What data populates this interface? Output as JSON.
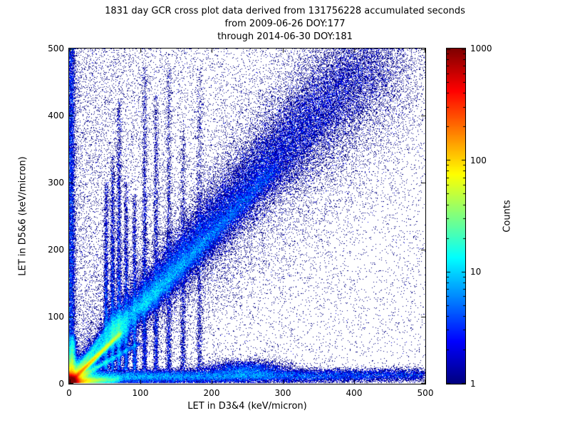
{
  "chart_data": {
    "type": "heatmap",
    "title": "1831 day GCR cross plot data derived from 131756228 accumulated seconds",
    "subtitle_from": "from 2009-06-26 DOY:177",
    "subtitle_through": "through 2014-06-30 DOY:181",
    "xlabel": "LET in D3&4 (keV/micron)",
    "ylabel": "LET in D5&6 (keV/micron)",
    "xlim": [
      0,
      500
    ],
    "ylim": [
      0,
      500
    ],
    "xticks": [
      0,
      100,
      200,
      300,
      400,
      500
    ],
    "yticks": [
      0,
      100,
      200,
      300,
      400,
      500
    ],
    "grid": false,
    "colormap": "jet",
    "background": "#ffffff",
    "point_color_min": "#000080",
    "colorbar": {
      "label": "Counts",
      "scale": "log",
      "min": 1,
      "max": 1000,
      "ticks": [
        1,
        10,
        100,
        1000
      ]
    },
    "features": [
      {
        "name": "origin-hotspot",
        "type": "gaussian",
        "x": 3,
        "y": 3,
        "sx": 5,
        "sy": 5,
        "points": 130000
      },
      {
        "name": "origin-halo",
        "type": "gaussian",
        "x": 6,
        "y": 6,
        "sx": 14,
        "sy": 14,
        "points": 30000
      },
      {
        "name": "x-axis-ray",
        "type": "line",
        "x1": 0,
        "y1": 3,
        "x2": 70,
        "y2": 5,
        "sigma": 2.5,
        "decay": 2.5,
        "points": 22000
      },
      {
        "name": "y-axis-ray",
        "type": "line",
        "x1": 3,
        "y1": 0,
        "x2": 5,
        "y2": 70,
        "sigma": 2.5,
        "decay": 2.5,
        "points": 16000
      },
      {
        "name": "diagonal-bright-streak",
        "type": "line",
        "x1": 0,
        "y1": 0,
        "x2": 73,
        "y2": 75,
        "sigma": 1.7,
        "decay": 2.0,
        "points": 42000
      },
      {
        "name": "lower-fan-streak",
        "type": "line",
        "x1": 0,
        "y1": 0,
        "x2": 100,
        "y2": 60,
        "sigma": 2.2,
        "decay": 2.6,
        "points": 9000
      },
      {
        "name": "upper-fan-streak",
        "type": "line",
        "x1": 0,
        "y1": 0,
        "x2": 58,
        "y2": 88,
        "sigma": 2.2,
        "decay": 2.6,
        "points": 7000
      },
      {
        "name": "streak-tip-cluster",
        "type": "gaussian",
        "x": 68,
        "y": 80,
        "sx": 8,
        "sy": 16,
        "points": 7000
      },
      {
        "name": "main-diagonal-band",
        "type": "line",
        "x1": 15,
        "y1": 18,
        "x2": 430,
        "y2": 500,
        "sigma": 13,
        "sigma_grow": 2.2,
        "decay": 1.3,
        "points": 70000
      },
      {
        "name": "diagonal-band-core",
        "type": "line",
        "x1": 100,
        "y1": 110,
        "x2": 290,
        "y2": 320,
        "sigma": 6,
        "decay": 1.0,
        "points": 12000
      },
      {
        "name": "diagonal-band-halo",
        "type": "line",
        "x1": 10,
        "y1": 15,
        "x2": 460,
        "y2": 500,
        "sigma": 38,
        "sigma_grow": 2.0,
        "decay": 0.7,
        "points": 15000
      },
      {
        "name": "bottom-band",
        "type": "line",
        "x1": 0,
        "y1": 9,
        "x2": 500,
        "y2": 12,
        "sigma": 5,
        "decay": 1.4,
        "points": 34000
      },
      {
        "name": "bottom-band-bump",
        "type": "gaussian",
        "x": 248,
        "y": 20,
        "sx": 30,
        "sy": 7,
        "points": 5000
      },
      {
        "name": "left-edge-column",
        "type": "vline",
        "x": 3,
        "y0": 0,
        "ymax": 500,
        "sigma": 3,
        "decay": 0.5,
        "points": 10000
      },
      {
        "name": "vertical-striation-1",
        "type": "vline",
        "x": 52,
        "y0": 20,
        "ymax": 300,
        "sigma": 1.6,
        "decay": 2.0,
        "points": 3000
      },
      {
        "name": "vertical-striation-2",
        "type": "vline",
        "x": 61,
        "y0": 20,
        "ymax": 340,
        "sigma": 1.6,
        "decay": 2.0,
        "points": 3200
      },
      {
        "name": "vertical-striation-3",
        "type": "vline",
        "x": 70,
        "y0": 20,
        "ymax": 420,
        "sigma": 1.7,
        "decay": 2.2,
        "points": 3600
      },
      {
        "name": "vertical-striation-4",
        "type": "vline",
        "x": 80,
        "y0": 20,
        "ymax": 300,
        "sigma": 1.6,
        "decay": 2.0,
        "points": 2600
      },
      {
        "name": "vertical-striation-5",
        "type": "vline",
        "x": 92,
        "y0": 20,
        "ymax": 280,
        "sigma": 1.7,
        "decay": 1.8,
        "points": 2400
      },
      {
        "name": "vertical-striation-6",
        "type": "vline",
        "x": 106,
        "y0": 20,
        "ymax": 470,
        "sigma": 1.8,
        "decay": 1.8,
        "points": 2600
      },
      {
        "name": "vertical-striation-7",
        "type": "vline",
        "x": 122,
        "y0": 20,
        "ymax": 430,
        "sigma": 1.8,
        "decay": 1.6,
        "points": 2200
      },
      {
        "name": "vertical-striation-8",
        "type": "vline",
        "x": 140,
        "y0": 20,
        "ymax": 470,
        "sigma": 2.0,
        "decay": 1.5,
        "points": 2000
      },
      {
        "name": "vertical-striation-9",
        "type": "vline",
        "x": 160,
        "y0": 20,
        "ymax": 380,
        "sigma": 2.0,
        "decay": 1.5,
        "points": 1500
      },
      {
        "name": "vertical-striation-10",
        "type": "vline",
        "x": 183,
        "y0": 20,
        "ymax": 470,
        "sigma": 2.2,
        "decay": 1.4,
        "points": 1400
      },
      {
        "name": "sparse-background-scatter",
        "type": "scatter",
        "points": 17000,
        "left_fraction": 0.6,
        "xscale": 150
      },
      {
        "name": "upper-right-band-scatter",
        "type": "line",
        "x1": 300,
        "y1": 330,
        "x2": 450,
        "y2": 500,
        "sigma": 45,
        "decay": 0.3,
        "points": 5000
      }
    ]
  }
}
